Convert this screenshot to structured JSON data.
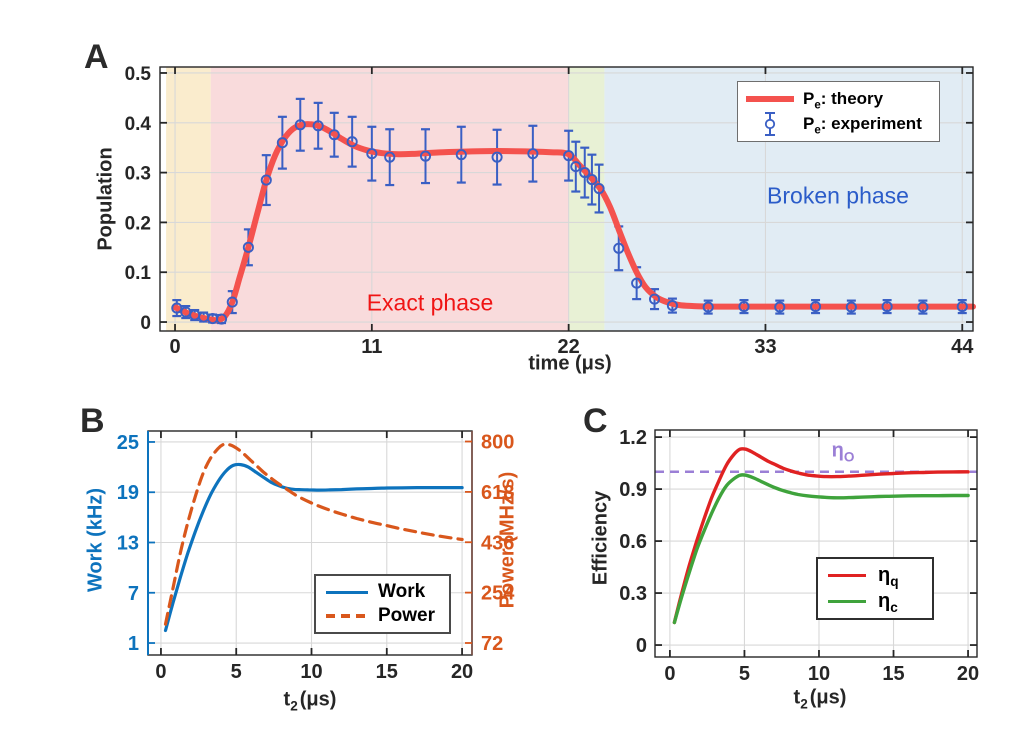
{
  "colors": {
    "theory_red": "#f4524e",
    "experiment_blue": "#3a5fc4",
    "band_rampup": "#faeccd",
    "band_exact": "#f9dbdc",
    "band_quench": "#e8f1d5",
    "band_broken": "#e1ecf4",
    "exact_label_red": "#f01414",
    "broken_label_blue": "#2b5cc9",
    "work_blue": "#0d73bd",
    "power_orange": "#d9571c",
    "right_spine_brown": "#7a4f45",
    "eta_q_red": "#e02222",
    "eta_c_green": "#3fa33c",
    "eta_o_purple": "#9b7fd6",
    "grid_gray": "#d8d8d8",
    "axis_dark": "#262626"
  },
  "panels": {
    "a": {
      "letter": "A"
    },
    "b": {
      "letter": "B"
    },
    "c": {
      "letter": "C"
    }
  },
  "chart_data": [
    {
      "id": "A",
      "type": "line",
      "xlabel": "time (μs)",
      "ylabel": "Population",
      "xlim": [
        -0.84,
        44.6
      ],
      "ylim": [
        -0.018,
        0.512
      ],
      "xticks": [
        0,
        11,
        22,
        33,
        44
      ],
      "xtick_labels": [
        "0",
        "11",
        "22",
        "33",
        "44"
      ],
      "yticks": [
        0,
        0.1,
        0.2,
        0.3,
        0.4,
        0.5
      ],
      "ytick_labels": [
        "0",
        "0.1",
        "0.2",
        "0.3",
        "0.4",
        "0.5"
      ],
      "grid": true,
      "bands": [
        {
          "name": "ramp-up",
          "x0": -0.5,
          "x1": 2,
          "color_key": "band_rampup"
        },
        {
          "name": "exact-phase",
          "x0": 2,
          "x1": 22,
          "color_key": "band_exact"
        },
        {
          "name": "quench",
          "x0": 22,
          "x1": 24,
          "color_key": "band_quench"
        },
        {
          "name": "broken-phase",
          "x0": 24,
          "x1": 44.6,
          "color_key": "band_broken"
        }
      ],
      "legend": {
        "position": "top-right",
        "items": [
          {
            "pre": "P",
            "sub": "e",
            "post": ": theory",
            "swatch": "thick-line",
            "color_key": "theory_red"
          },
          {
            "pre": "P",
            "sub": "e",
            "post": ": experiment",
            "swatch": "errorbar-marker",
            "color_key": "experiment_blue"
          }
        ]
      },
      "annotations": [
        {
          "text": "Exact phase",
          "x": 14.2,
          "y": 0.04,
          "color_key": "exact_label_red"
        },
        {
          "text": "Broken phase",
          "x": 37.2,
          "y": 0.253,
          "color_key": "broken_label_blue"
        }
      ],
      "series": [
        {
          "name": "Pe: theory",
          "style": "solid",
          "width": 6,
          "color_key": "theory_red",
          "x": [
            0,
            0.5,
            1.0,
            1.5,
            2.0,
            2.4,
            2.8,
            3.2,
            3.6,
            4.1,
            4.6,
            5.1,
            5.6,
            6.1,
            6.6,
            7.1,
            7.6,
            8.1,
            8.7,
            9.3,
            10.0,
            10.8,
            11.6,
            12.5,
            13.5,
            15,
            17,
            19,
            21,
            22,
            22.6,
            23.2,
            23.8,
            24.3,
            24.8,
            25.3,
            25.8,
            26.3,
            26.9,
            27.5,
            28.2,
            29,
            30,
            32,
            35,
            38,
            41,
            44.6
          ],
          "y": [
            0.03,
            0.021,
            0.014,
            0.009,
            0.005,
            0.004,
            0.012,
            0.04,
            0.088,
            0.15,
            0.218,
            0.285,
            0.335,
            0.368,
            0.388,
            0.396,
            0.397,
            0.393,
            0.382,
            0.368,
            0.354,
            0.344,
            0.339,
            0.337,
            0.338,
            0.341,
            0.343,
            0.343,
            0.341,
            0.337,
            0.315,
            0.292,
            0.266,
            0.232,
            0.186,
            0.14,
            0.1,
            0.07,
            0.05,
            0.04,
            0.034,
            0.032,
            0.031,
            0.031,
            0.031,
            0.031,
            0.031,
            0.031
          ]
        },
        {
          "name": "Pe: experiment",
          "style": "errorbar",
          "color_key": "experiment_blue",
          "x": [
            0.1,
            0.6,
            1.1,
            1.6,
            2.1,
            2.6,
            3.2,
            4.1,
            5.1,
            6.0,
            7.0,
            8.0,
            8.9,
            9.9,
            11.0,
            12.0,
            14.0,
            16.0,
            18.0,
            20.0,
            22.0,
            22.4,
            22.9,
            23.3,
            23.7,
            24.8,
            25.8,
            26.8,
            27.8,
            29.8,
            31.8,
            33.8,
            35.8,
            37.8,
            39.8,
            41.8,
            44.0
          ],
          "y": [
            0.028,
            0.02,
            0.014,
            0.01,
            0.007,
            0.006,
            0.04,
            0.15,
            0.285,
            0.36,
            0.396,
            0.394,
            0.376,
            0.362,
            0.338,
            0.331,
            0.333,
            0.336,
            0.331,
            0.338,
            0.334,
            0.312,
            0.3,
            0.286,
            0.268,
            0.148,
            0.078,
            0.046,
            0.033,
            0.03,
            0.031,
            0.03,
            0.031,
            0.03,
            0.031,
            0.03,
            0.031
          ],
          "yerr": [
            0.016,
            0.012,
            0.01,
            0.009,
            0.008,
            0.008,
            0.022,
            0.036,
            0.05,
            0.052,
            0.052,
            0.046,
            0.044,
            0.05,
            0.054,
            0.056,
            0.054,
            0.056,
            0.055,
            0.056,
            0.05,
            0.05,
            0.05,
            0.05,
            0.048,
            0.044,
            0.032,
            0.02,
            0.014,
            0.013,
            0.013,
            0.013,
            0.013,
            0.013,
            0.013,
            0.013,
            0.013
          ]
        }
      ]
    },
    {
      "id": "B",
      "type": "line",
      "xlabel_parts": {
        "pre": "t",
        "sub": "2",
        "post": "(μs)"
      },
      "ylabel_left": "Work (kHz)",
      "ylabel_right": "Power (MHz/s)",
      "xlim": [
        -0.86,
        20.66
      ],
      "ylim_left": [
        -0.43,
        26.31
      ],
      "ylim_right": [
        28.6,
        838
      ],
      "xticks": [
        0,
        5,
        10,
        15,
        20
      ],
      "xtick_labels": [
        "0",
        "5",
        "10",
        "15",
        "20"
      ],
      "yticks_left": [
        1,
        7,
        13,
        19,
        25
      ],
      "ytick_labels_left": [
        "1",
        "7",
        "13",
        "19",
        "25"
      ],
      "yticks_right": [
        72,
        254,
        436,
        618,
        800
      ],
      "ytick_labels_right": [
        "72",
        "254",
        "436",
        "618",
        "800"
      ],
      "grid": true,
      "legend": {
        "position": "bottom-right",
        "items": [
          {
            "label": "Work",
            "swatch": "solid-line",
            "color_key": "work_blue"
          },
          {
            "label": "Power",
            "swatch": "dashed-line",
            "color_key": "power_orange"
          }
        ]
      },
      "series": [
        {
          "name": "Work",
          "axis": "left",
          "style": "solid",
          "width": 3.2,
          "color_key": "work_blue",
          "x": [
            0.3,
            0.8,
            1.3,
            1.8,
            2.3,
            2.8,
            3.3,
            3.8,
            4.3,
            4.8,
            5.3,
            5.8,
            6.3,
            6.8,
            7.3,
            7.8,
            8.3,
            8.8,
            9.3,
            9.8,
            10.5,
            11.2,
            12,
            13,
            14,
            15,
            16,
            17,
            18,
            19,
            20
          ],
          "y": [
            2.5,
            5.8,
            8.9,
            11.8,
            14.4,
            16.7,
            18.7,
            20.3,
            21.5,
            22.2,
            22.3,
            22.0,
            21.4,
            20.8,
            20.2,
            19.8,
            19.5,
            19.35,
            19.3,
            19.28,
            19.26,
            19.28,
            19.32,
            19.4,
            19.45,
            19.5,
            19.52,
            19.55,
            19.55,
            19.55,
            19.55
          ]
        },
        {
          "name": "Power",
          "axis": "right",
          "style": "dashed",
          "width": 3.2,
          "color_key": "power_orange",
          "x": [
            0.3,
            0.8,
            1.3,
            1.8,
            2.3,
            2.8,
            3.3,
            3.8,
            4.1,
            4.4,
            4.8,
            5.3,
            5.8,
            6.3,
            6.8,
            7.3,
            7.8,
            8.3,
            9,
            10,
            11,
            12,
            13,
            14,
            15,
            16,
            17,
            18,
            19,
            20
          ],
          "y": [
            140,
            270,
            400,
            510,
            605,
            685,
            740,
            775,
            788,
            790,
            783,
            765,
            740,
            715,
            690,
            668,
            648,
            630,
            605,
            578,
            556,
            538,
            522,
            508,
            496,
            484,
            473,
            463,
            454,
            446
          ]
        }
      ]
    },
    {
      "id": "C",
      "type": "line",
      "xlabel_parts": {
        "pre": "t",
        "sub": "2",
        "post": "(μs)"
      },
      "ylabel": "Efficiency",
      "xlim": [
        -1.0,
        20.6
      ],
      "ylim": [
        -0.069,
        1.241
      ],
      "xticks": [
        0,
        5,
        10,
        15,
        20
      ],
      "xtick_labels": [
        "0",
        "5",
        "10",
        "15",
        "20"
      ],
      "yticks": [
        0,
        0.3,
        0.6,
        0.9,
        1.2
      ],
      "ytick_labels": [
        "0",
        "0.3",
        "0.6",
        "0.9",
        "1.2"
      ],
      "grid": true,
      "ref_line": {
        "y": 1.0,
        "style": "dashed",
        "color_key": "eta_o_purple",
        "label_pre": "η",
        "label_sub": "O"
      },
      "legend": {
        "position": "bottom-right",
        "items": [
          {
            "pre": "η",
            "sub": "q",
            "swatch": "solid-line",
            "color_key": "eta_q_red"
          },
          {
            "pre": "η",
            "sub": "c",
            "swatch": "solid-line",
            "color_key": "eta_c_green"
          }
        ]
      },
      "series": [
        {
          "name": "eta_q",
          "style": "solid",
          "width": 3.4,
          "color_key": "eta_q_red",
          "x": [
            0.3,
            0.8,
            1.3,
            1.8,
            2.3,
            2.8,
            3.3,
            3.8,
            4.3,
            4.7,
            5.1,
            5.6,
            6.1,
            6.6,
            7.1,
            7.6,
            8.1,
            8.6,
            9.2,
            9.8,
            10.5,
            11.2,
            12,
            13,
            14,
            15,
            16,
            17,
            18,
            19,
            20
          ],
          "y": [
            0.13,
            0.3,
            0.46,
            0.6,
            0.73,
            0.85,
            0.95,
            1.04,
            1.1,
            1.13,
            1.13,
            1.11,
            1.085,
            1.06,
            1.04,
            1.02,
            1.005,
            0.993,
            0.982,
            0.976,
            0.972,
            0.972,
            0.975,
            0.98,
            0.986,
            0.99,
            0.994,
            0.996,
            0.998,
            0.999,
            1.0
          ]
        },
        {
          "name": "eta_c",
          "style": "solid",
          "width": 3.4,
          "color_key": "eta_c_green",
          "x": [
            0.3,
            0.8,
            1.3,
            1.8,
            2.3,
            2.8,
            3.3,
            3.8,
            4.3,
            4.7,
            5.1,
            5.6,
            6.1,
            6.6,
            7.1,
            7.6,
            8.1,
            8.6,
            9.2,
            9.8,
            10.5,
            11.2,
            12,
            13,
            14,
            15,
            16,
            17,
            18,
            19,
            20
          ],
          "y": [
            0.13,
            0.28,
            0.42,
            0.55,
            0.66,
            0.76,
            0.85,
            0.92,
            0.96,
            0.98,
            0.98,
            0.965,
            0.945,
            0.925,
            0.906,
            0.891,
            0.879,
            0.869,
            0.861,
            0.856,
            0.852,
            0.85,
            0.851,
            0.854,
            0.857,
            0.859,
            0.861,
            0.862,
            0.862,
            0.863,
            0.863
          ]
        }
      ]
    }
  ]
}
